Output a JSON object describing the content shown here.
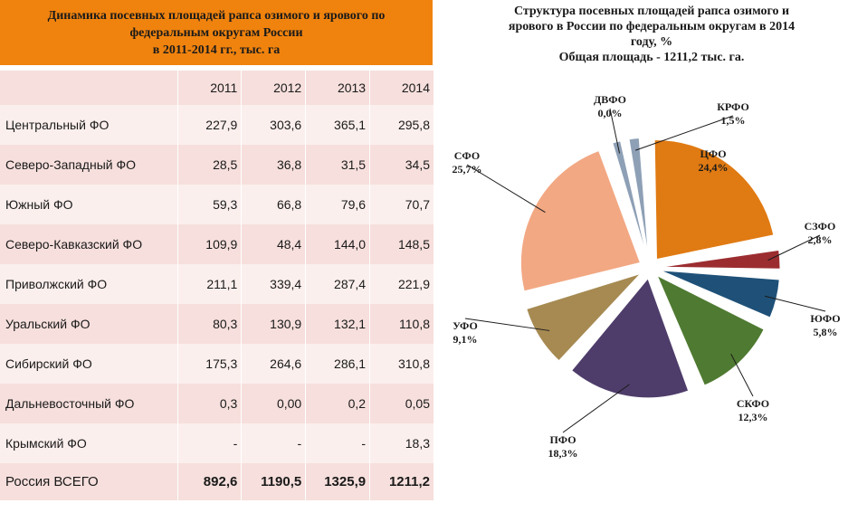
{
  "table": {
    "title_lines": [
      "Динамика посевных площадей рапса озимого и ярового по",
      "федеральным округам России",
      "в 2011-2014 гг., тыс. га"
    ],
    "years": [
      "2011",
      "2012",
      "2013",
      "2014"
    ],
    "rows": [
      {
        "name": "Центральный ФО",
        "values": [
          "227,9",
          "303,6",
          "365,1",
          "295,8"
        ]
      },
      {
        "name": "Северо-Западный ФО",
        "values": [
          "28,5",
          "36,8",
          "31,5",
          "34,5"
        ]
      },
      {
        "name": "Южный ФО",
        "values": [
          "59,3",
          "66,8",
          "79,6",
          "70,7"
        ]
      },
      {
        "name": "Северо-Кавказский ФО",
        "values": [
          "109,9",
          "48,4",
          "144,0",
          "148,5"
        ]
      },
      {
        "name": "Приволжский ФО",
        "values": [
          "211,1",
          "339,4",
          "287,4",
          "221,9"
        ]
      },
      {
        "name": "Уральский ФО",
        "values": [
          "80,3",
          "130,9",
          "132,1",
          "110,8"
        ]
      },
      {
        "name": "Сибирский ФО",
        "values": [
          "175,3",
          "264,6",
          "286,1",
          "310,8"
        ]
      },
      {
        "name": "Дальневосточный ФО",
        "values": [
          "0,3",
          "0,00",
          "0,2",
          "0,05"
        ]
      },
      {
        "name": "Крымский ФО",
        "values": [
          "-",
          "-",
          "-",
          "18,3"
        ]
      }
    ],
    "total": {
      "name": "Россия ВСЕГО",
      "values": [
        "892,6",
        "1190,5",
        "1325,9",
        "1211,2"
      ]
    }
  },
  "chart_data": {
    "type": "pie",
    "title_lines": [
      "Структура посевных площадей рапса озимого и",
      "ярового в России по федеральным округам в 2014",
      "году, %",
      "Общая площадь -  1211,2 тыс. га."
    ],
    "slices": [
      {
        "label": "ЦФО",
        "value": 24.4,
        "value_label": "24,4%",
        "color": "#e07a12"
      },
      {
        "label": "СЗФО",
        "value": 2.8,
        "value_label": "2,8%",
        "color": "#9b2d30"
      },
      {
        "label": "ЮФО",
        "value": 5.8,
        "value_label": "5,8%",
        "color": "#1f5178"
      },
      {
        "label": "СКФО",
        "value": 12.3,
        "value_label": "12,3%",
        "color": "#4f7a32"
      },
      {
        "label": "ПФО",
        "value": 18.3,
        "value_label": "18,3%",
        "color": "#4e3d6a"
      },
      {
        "label": "УФО",
        "value": 9.1,
        "value_label": "9,1%",
        "color": "#a68a52"
      },
      {
        "label": "СФО",
        "value": 25.7,
        "value_label": "25,7%",
        "color": "#f2a883"
      },
      {
        "label": "ДВФО",
        "value": 0.0,
        "value_label": "0,0%",
        "color": "#8ea0b6"
      },
      {
        "label": "КРФО",
        "value": 1.5,
        "value_label": "1,5%",
        "color": "#8ea0b6"
      }
    ]
  }
}
